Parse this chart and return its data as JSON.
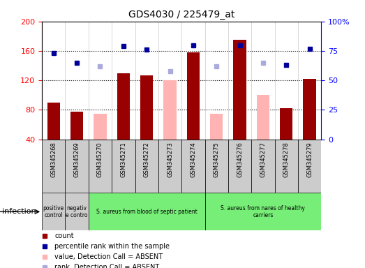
{
  "title": "GDS4030 / 225479_at",
  "samples": [
    "GSM345268",
    "GSM345269",
    "GSM345270",
    "GSM345271",
    "GSM345272",
    "GSM345273",
    "GSM345274",
    "GSM345275",
    "GSM345276",
    "GSM345277",
    "GSM345278",
    "GSM345279"
  ],
  "count_values": [
    90,
    78,
    null,
    130,
    127,
    null,
    158,
    null,
    175,
    null,
    82,
    122
  ],
  "count_absent": [
    null,
    null,
    75,
    null,
    null,
    120,
    null,
    75,
    null,
    100,
    null,
    null
  ],
  "rank_values": [
    73,
    65,
    null,
    79,
    76,
    null,
    80,
    null,
    80,
    null,
    63,
    77
  ],
  "rank_absent": [
    null,
    null,
    62,
    null,
    null,
    58,
    null,
    62,
    null,
    65,
    null,
    null
  ],
  "ylim_left": [
    40,
    200
  ],
  "ylim_right": [
    0,
    100
  ],
  "left_ticks": [
    40,
    80,
    120,
    160,
    200
  ],
  "right_ticks": [
    0,
    25,
    50,
    75,
    100
  ],
  "right_tick_labels": [
    "0",
    "25",
    "50",
    "75",
    "100%"
  ],
  "bar_color_present": "#990000",
  "bar_color_absent": "#ffb3b3",
  "dot_color_present": "#000099",
  "dot_color_absent": "#aaaadd",
  "groups": [
    {
      "label": "positive\ncontrol",
      "start": 0,
      "end": 1,
      "color": "#cccccc"
    },
    {
      "label": "negativ\ne contro",
      "start": 1,
      "end": 2,
      "color": "#cccccc"
    },
    {
      "label": "S. aureus from blood of septic patient",
      "start": 2,
      "end": 7,
      "color": "#77ee77"
    },
    {
      "label": "S. aureus from nares of healthy\ncarriers",
      "start": 7,
      "end": 12,
      "color": "#77ee77"
    }
  ],
  "legend_items": [
    {
      "label": "count",
      "color": "#990000"
    },
    {
      "label": "percentile rank within the sample",
      "color": "#000099"
    },
    {
      "label": "value, Detection Call = ABSENT",
      "color": "#ffb3b3"
    },
    {
      "label": "rank, Detection Call = ABSENT",
      "color": "#aaaadd"
    }
  ],
  "factor_label": "infection",
  "xlabel_bg": "#cccccc",
  "plot_bg": "#ffffff"
}
